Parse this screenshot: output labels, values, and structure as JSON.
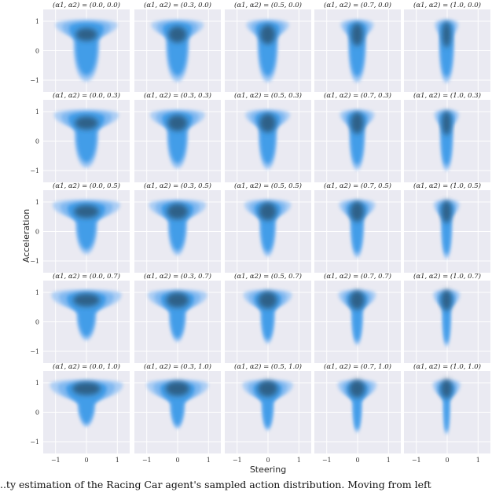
{
  "chart_data": {
    "type": "kde-grid",
    "xlabel": "Steering",
    "ylabel": "Acceleration",
    "xlim": [
      -1.4,
      1.4
    ],
    "ylim": [
      -1.4,
      1.4
    ],
    "xticks": [
      "−1",
      "0",
      "1"
    ],
    "yticks": [
      "1",
      "0",
      "−1"
    ],
    "panel_title_template": "(α1, α2) = ({a1}, {a2})",
    "alpha1": [
      "0.0",
      "0.3",
      "0.5",
      "0.7",
      "1.0"
    ],
    "alpha2": [
      "0.0",
      "0.3",
      "0.5",
      "0.7",
      "1.0"
    ],
    "panel_titles": [
      [
        "(α1, α2) = (0.0, 0.0)",
        "(α1, α2) = (0.3, 0.0)",
        "(α1, α2) = (0.5, 0.0)",
        "(α1, α2) = (0.7, 0.0)",
        "(α1, α2) = (1.0, 0.0)"
      ],
      [
        "(α1, α2) = (0.0, 0.3)",
        "(α1, α2) = (0.3, 0.3)",
        "(α1, α2) = (0.5, 0.3)",
        "(α1, α2) = (0.7, 0.3)",
        "(α1, α2) = (1.0, 0.3)"
      ],
      [
        "(α1, α2) = (0.0, 0.5)",
        "(α1, α2) = (0.3, 0.5)",
        "(α1, α2) = (0.5, 0.5)",
        "(α1, α2) = (0.7, 0.5)",
        "(α1, α2) = (1.0, 0.5)"
      ],
      [
        "(α1, α2) = (0.0, 0.7)",
        "(α1, α2) = (0.3, 0.7)",
        "(α1, α2) = (0.5, 0.7)",
        "(α1, α2) = (0.7, 0.7)",
        "(α1, α2) = (1.0, 0.7)"
      ],
      [
        "(α1, α2) = (0.0, 1.0)",
        "(α1, α2) = (0.3, 1.0)",
        "(α1, α2) = (0.5, 1.0)",
        "(α1, α2) = (0.7, 1.0)",
        "(α1, α2) = (1.0, 1.0)"
      ]
    ],
    "colors": {
      "background": "#eaeaf2",
      "grid": "#ffffff",
      "density_light": "#a9ccf4",
      "density_mid": "#3b9ae8",
      "density_core": "#2a5577"
    },
    "grid": true
  },
  "caption": "...ty estimation of the Racing Car agent's sampled action distribution. Moving from left"
}
